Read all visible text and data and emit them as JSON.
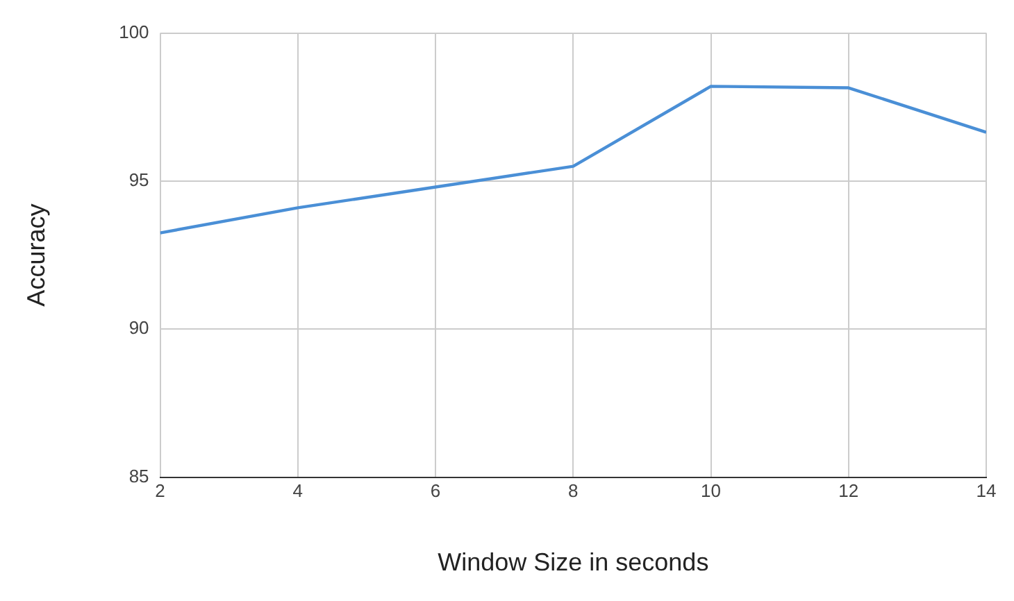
{
  "chart_data": {
    "type": "line",
    "xlabel": "Window Size in seconds",
    "ylabel": "Accuracy",
    "x": [
      2,
      4,
      6,
      8,
      10,
      12,
      14
    ],
    "series": [
      {
        "color": "#4a8fd6",
        "values": [
          93.25,
          94.1,
          94.8,
          95.5,
          98.2,
          98.15,
          96.65
        ]
      }
    ],
    "xlim": [
      2,
      14
    ],
    "xticks": [
      2,
      4,
      6,
      8,
      10,
      12,
      14
    ],
    "ylim": [
      85,
      100
    ],
    "yticks": [
      85,
      90,
      95,
      100
    ],
    "grid": true,
    "legend": false,
    "marker": "none",
    "line_style": "solid"
  }
}
